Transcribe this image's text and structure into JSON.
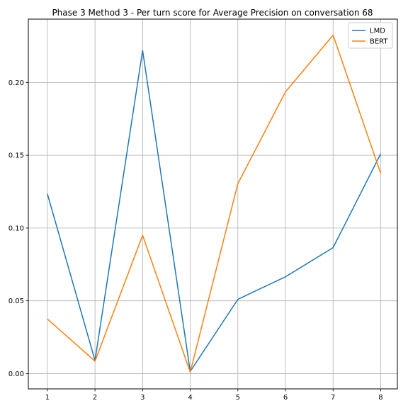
{
  "chart_data": {
    "type": "line",
    "title": "Phase 3 Method 3 - Per turn score for Average Precision on conversation 68",
    "xlabel": "",
    "ylabel": "",
    "x": [
      1,
      2,
      3,
      4,
      5,
      6,
      7,
      8
    ],
    "xlim": [
      0.6,
      8.35
    ],
    "ylim": [
      -0.0105,
      0.2435
    ],
    "xticks": [
      1,
      2,
      3,
      4,
      5,
      6,
      7,
      8
    ],
    "yticks": [
      0.0,
      0.05,
      0.1,
      0.15,
      0.2
    ],
    "ytick_labels": [
      "0.00",
      "0.05",
      "0.10",
      "0.15",
      "0.20"
    ],
    "grid": true,
    "legend_position": "top-right",
    "series": [
      {
        "name": "LMD",
        "color": "#1f77b4",
        "values": [
          0.1235,
          0.009,
          0.222,
          0.0015,
          0.051,
          0.0665,
          0.0865,
          0.151
        ]
      },
      {
        "name": "BERT",
        "color": "#ff7f0e",
        "values": [
          0.0375,
          0.0085,
          0.095,
          0.001,
          0.1305,
          0.1935,
          0.2325,
          0.1375
        ]
      }
    ]
  }
}
